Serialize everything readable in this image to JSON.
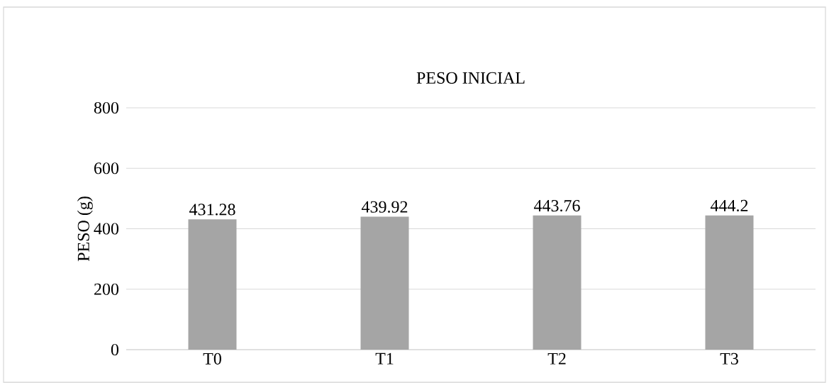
{
  "chart_data": {
    "type": "bar",
    "title": "PESO INICIAL",
    "ylabel": "PESO (g)",
    "categories": [
      "T0",
      "T1",
      "T2",
      "T3"
    ],
    "values": [
      431.28,
      439.92,
      443.76,
      444.2
    ],
    "color": "#a5a5a5",
    "ylim": [
      0,
      800
    ],
    "yticks": [
      0,
      200,
      400,
      600,
      800
    ],
    "grid": "y",
    "data_labels": true
  }
}
